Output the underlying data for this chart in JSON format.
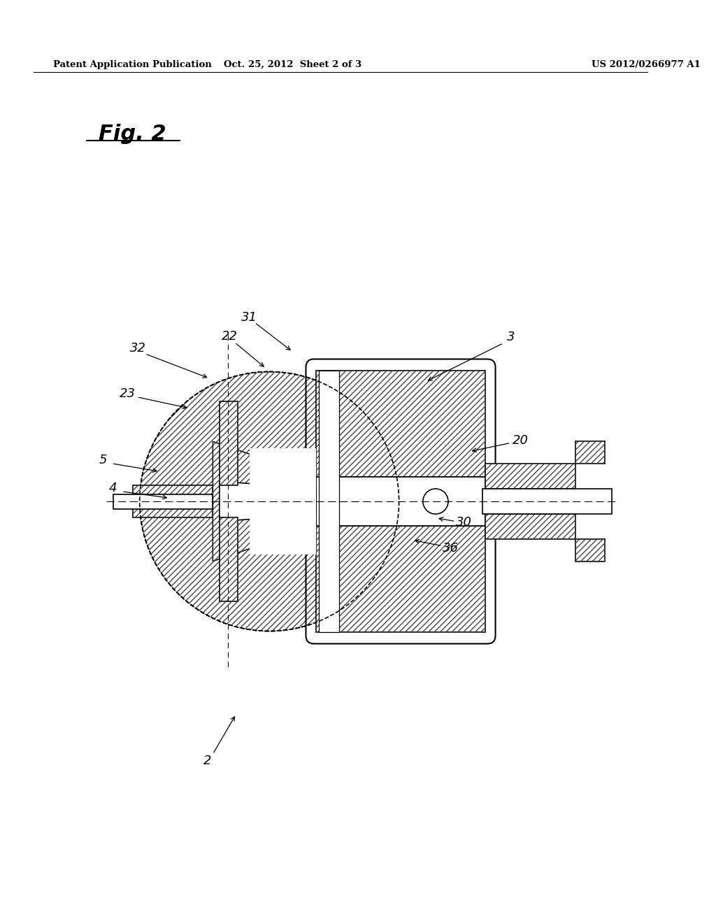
{
  "bg_color": "#ffffff",
  "lc": "#000000",
  "header_left": "Patent Application Publication",
  "header_mid": "Oct. 25, 2012  Sheet 2 of 3",
  "header_right": "US 2012/0266977 A1"
}
